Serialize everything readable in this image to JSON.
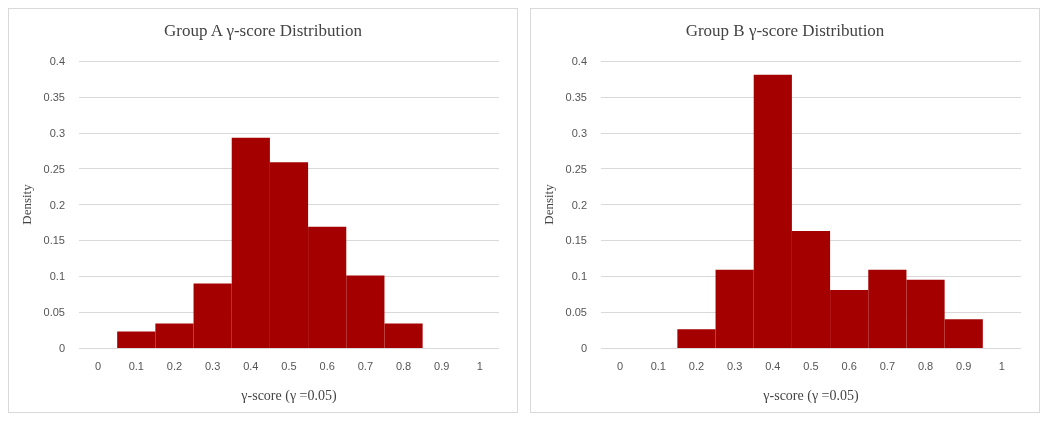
{
  "chart_data": [
    {
      "type": "histogram",
      "title": "Group A γ-score Distribution",
      "xlabel": "γ-score (γ =0.05)",
      "ylabel": "Density",
      "bins": [
        0.05,
        0.15,
        0.25,
        0.35,
        0.45,
        0.55,
        0.65,
        0.75,
        0.85
      ],
      "values": [
        0.023,
        0.034,
        0.09,
        0.293,
        0.259,
        0.169,
        0.101,
        0.034
      ],
      "color": "#a50000",
      "xlim": [
        -0.05,
        1.05
      ],
      "xticks": [
        0,
        0.1,
        0.2,
        0.3,
        0.4,
        0.5,
        0.6,
        0.7,
        0.8,
        0.9,
        1
      ],
      "ylim": [
        0,
        0.4
      ],
      "yticks": [
        0,
        0.05,
        0.1,
        0.15,
        0.2,
        0.25,
        0.3,
        0.35,
        0.4
      ],
      "grid": "y"
    },
    {
      "type": "histogram",
      "title": "Group B γ-score Distribution",
      "xlabel": "γ-score (γ =0.05)",
      "ylabel": "Density",
      "bins": [
        0.15,
        0.25,
        0.35,
        0.45,
        0.55,
        0.65,
        0.75,
        0.85,
        0.95
      ],
      "values": [
        0.026,
        0.109,
        0.381,
        0.163,
        0.081,
        0.109,
        0.095,
        0.04
      ],
      "color": "#a50000",
      "xlim": [
        -0.05,
        1.05
      ],
      "xticks": [
        0,
        0.1,
        0.2,
        0.3,
        0.4,
        0.5,
        0.6,
        0.7,
        0.8,
        0.9,
        1
      ],
      "ylim": [
        0,
        0.4
      ],
      "yticks": [
        0,
        0.05,
        0.1,
        0.15,
        0.2,
        0.25,
        0.3,
        0.35,
        0.4
      ],
      "grid": "y"
    }
  ]
}
